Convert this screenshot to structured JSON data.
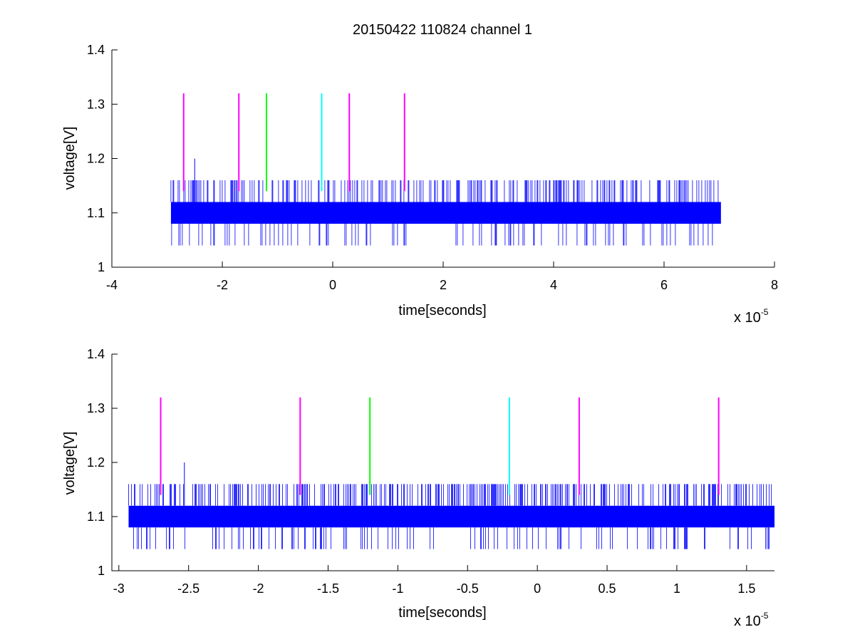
{
  "chart_data": [
    {
      "type": "line",
      "title": "20150422 110824 channel 1",
      "xlabel": "time[seconds]",
      "ylabel": "voltage[V]",
      "x_multiplier_base": "x 10",
      "x_multiplier_exp": "-5",
      "xlim": [
        -4,
        8
      ],
      "ylim": [
        1,
        1.4
      ],
      "xticks": [
        -4,
        -2,
        0,
        2,
        4,
        6,
        8
      ],
      "xtick_labels": [
        "-4",
        "-2",
        "0",
        "2",
        "4",
        "6",
        "8"
      ],
      "yticks": [
        1,
        1.1,
        1.2,
        1.3,
        1.4
      ],
      "ytick_labels": [
        "1",
        "1.1",
        "1.2",
        "1.3",
        "1.4"
      ],
      "series": [
        {
          "color": "#0000ff",
          "x_range": [
            -2.93,
            7.03
          ],
          "band": [
            1.08,
            1.12
          ],
          "spike_high": 1.16,
          "spike_low": 1.04,
          "outlier": {
            "x": -2.5,
            "y": 1.2
          }
        }
      ],
      "markers": [
        {
          "x": -2.7,
          "y_from": 1.14,
          "y_to": 1.32,
          "color": "#ff00ff"
        },
        {
          "x": -1.7,
          "y_from": 1.14,
          "y_to": 1.32,
          "color": "#ff00ff"
        },
        {
          "x": -1.2,
          "y_from": 1.14,
          "y_to": 1.32,
          "color": "#00ff00"
        },
        {
          "x": -0.2,
          "y_from": 1.14,
          "y_to": 1.32,
          "color": "#00ffff"
        },
        {
          "x": 0.3,
          "y_from": 1.14,
          "y_to": 1.32,
          "color": "#ff00ff"
        },
        {
          "x": 1.3,
          "y_from": 1.14,
          "y_to": 1.32,
          "color": "#ff00ff"
        }
      ]
    },
    {
      "type": "line",
      "title": "",
      "xlabel": "time[seconds]",
      "ylabel": "voltage[V]",
      "x_multiplier_base": "x 10",
      "x_multiplier_exp": "-5",
      "xlim": [
        -3.05,
        1.7
      ],
      "ylim": [
        1,
        1.4
      ],
      "xticks": [
        -3,
        -2.5,
        -2,
        -1.5,
        -1,
        -0.5,
        0,
        0.5,
        1,
        1.5
      ],
      "xtick_labels": [
        "-3",
        "-2.5",
        "-2",
        "-1.5",
        "-1",
        "-0.5",
        "0",
        "0.5",
        "1",
        "1.5"
      ],
      "yticks": [
        1,
        1.1,
        1.2,
        1.3,
        1.4
      ],
      "ytick_labels": [
        "1",
        "1.1",
        "1.2",
        "1.3",
        "1.4"
      ],
      "series": [
        {
          "color": "#0000ff",
          "x_range": [
            -2.93,
            1.7
          ],
          "band": [
            1.08,
            1.12
          ],
          "spike_high": 1.16,
          "spike_low": 1.04,
          "outlier": {
            "x": -2.53,
            "y": 1.2
          }
        }
      ],
      "markers": [
        {
          "x": -2.7,
          "y_from": 1.14,
          "y_to": 1.32,
          "color": "#ff00ff"
        },
        {
          "x": -1.7,
          "y_from": 1.14,
          "y_to": 1.32,
          "color": "#ff00ff"
        },
        {
          "x": -1.2,
          "y_from": 1.14,
          "y_to": 1.32,
          "color": "#00ff00"
        },
        {
          "x": -0.2,
          "y_from": 1.14,
          "y_to": 1.32,
          "color": "#00ffff"
        },
        {
          "x": 0.3,
          "y_from": 1.14,
          "y_to": 1.32,
          "color": "#ff00ff"
        },
        {
          "x": 1.3,
          "y_from": 1.14,
          "y_to": 1.32,
          "color": "#ff00ff"
        }
      ]
    }
  ]
}
